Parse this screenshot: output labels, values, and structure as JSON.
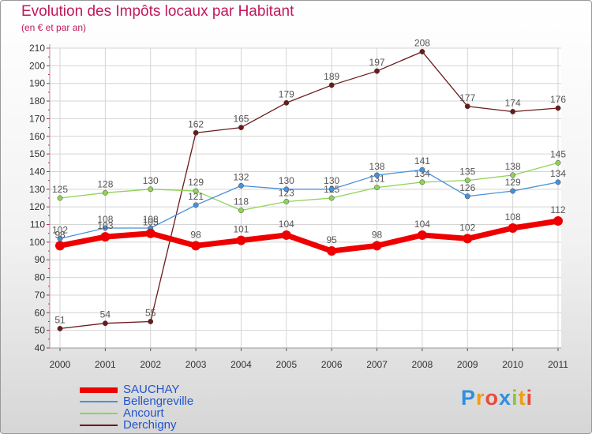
{
  "title": "Evolution des Impôts locaux par Habitant",
  "subtitle": "(en € et par an)",
  "brand": {
    "letters": [
      "P",
      "r",
      "o",
      "x",
      "i",
      "t",
      "i"
    ],
    "colors": [
      "#2f8fe0",
      "#f39c12",
      "#e74c3c",
      "#2f8fe0",
      "#8cc63f",
      "#f39c12",
      "#e74c3c"
    ]
  },
  "chart_data": {
    "type": "line",
    "x": [
      "2000",
      "2001",
      "2002",
      "2003",
      "2004",
      "2005",
      "2006",
      "2007",
      "2008",
      "2009",
      "2010",
      "2011"
    ],
    "ylim": [
      40,
      210
    ],
    "yticks": [
      40,
      50,
      60,
      70,
      80,
      90,
      100,
      110,
      120,
      130,
      140,
      150,
      160,
      170,
      180,
      190,
      200,
      210
    ],
    "grid": true,
    "legend_position": "bottom-left",
    "series": [
      {
        "name": "Derchigny",
        "color": "#6b1a1a",
        "values": [
          51,
          54,
          55,
          162,
          165,
          179,
          189,
          197,
          208,
          177,
          174,
          176
        ]
      },
      {
        "name": "Ancourt",
        "color": "#8fd35a",
        "values": [
          125,
          128,
          130,
          129,
          118,
          123,
          125,
          131,
          134,
          135,
          138,
          145
        ]
      },
      {
        "name": "Bellengreville",
        "color": "#4a90d9",
        "values": [
          102,
          108,
          108,
          121,
          132,
          130,
          130,
          138,
          141,
          126,
          129,
          134
        ]
      },
      {
        "name": "SAUCHAY",
        "color": "#ee0000",
        "values": [
          98,
          103,
          105,
          98,
          101,
          104,
          95,
          98,
          104,
          102,
          108,
          112
        ]
      }
    ],
    "legend": [
      "SAUCHAY",
      "Bellengreville",
      "Ancourt",
      "Derchigny"
    ]
  }
}
